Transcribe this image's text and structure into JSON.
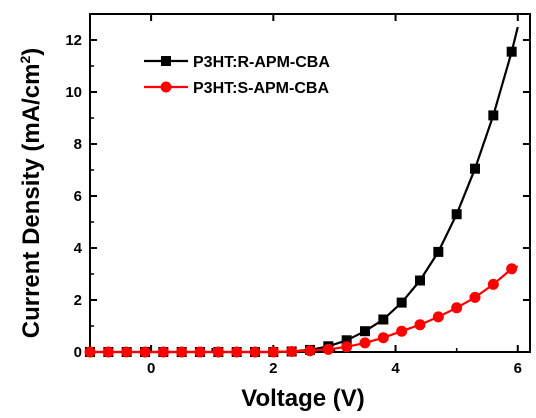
{
  "chart_data": {
    "type": "line",
    "xlabel": "Voltage (V)",
    "ylabel_main": "Current Density (mA/cm",
    "ylabel_sup": "2",
    "ylabel_close": ")",
    "xlim": [
      -1,
      6.2
    ],
    "ylim": [
      0,
      13
    ],
    "x_ticks": [
      0,
      2,
      4,
      6
    ],
    "y_ticks": [
      0,
      2,
      4,
      6,
      8,
      10,
      12
    ],
    "grid": false,
    "legend_position": "top-left",
    "series": [
      {
        "name": "P3HT:R-APM-CBA",
        "color": "#000000",
        "marker": "square",
        "x": [
          -1,
          -0.7,
          -0.4,
          -0.1,
          0.2,
          0.5,
          0.8,
          1.1,
          1.4,
          1.7,
          2.0,
          2.3,
          2.6,
          2.9,
          3.2,
          3.5,
          3.8,
          4.1,
          4.4,
          4.7,
          5.0,
          5.3,
          5.6,
          5.9
        ],
        "y": [
          0.0,
          0.0,
          0.0,
          0.0,
          0.0,
          0.0,
          0.0,
          0.0,
          0.0,
          0.0,
          0.0,
          0.02,
          0.08,
          0.22,
          0.45,
          0.8,
          1.25,
          1.9,
          2.75,
          3.85,
          5.3,
          7.05,
          9.1,
          11.55
        ],
        "curve_end": [
          6.0,
          12.5
        ]
      },
      {
        "name": "P3HT:S-APM-CBA",
        "color": "#ff0000",
        "marker": "circle",
        "x": [
          -1,
          -0.7,
          -0.4,
          -0.1,
          0.2,
          0.5,
          0.8,
          1.1,
          1.4,
          1.7,
          2.0,
          2.3,
          2.6,
          2.9,
          3.2,
          3.5,
          3.8,
          4.1,
          4.4,
          4.7,
          5.0,
          5.3,
          5.6,
          5.9
        ],
        "y": [
          0.0,
          0.0,
          0.0,
          0.0,
          0.0,
          0.0,
          0.0,
          0.0,
          0.0,
          0.0,
          0.0,
          0.02,
          0.05,
          0.1,
          0.2,
          0.35,
          0.55,
          0.8,
          1.05,
          1.35,
          1.7,
          2.1,
          2.6,
          3.2
        ],
        "curve_end": [
          6.0,
          3.3
        ]
      }
    ]
  }
}
